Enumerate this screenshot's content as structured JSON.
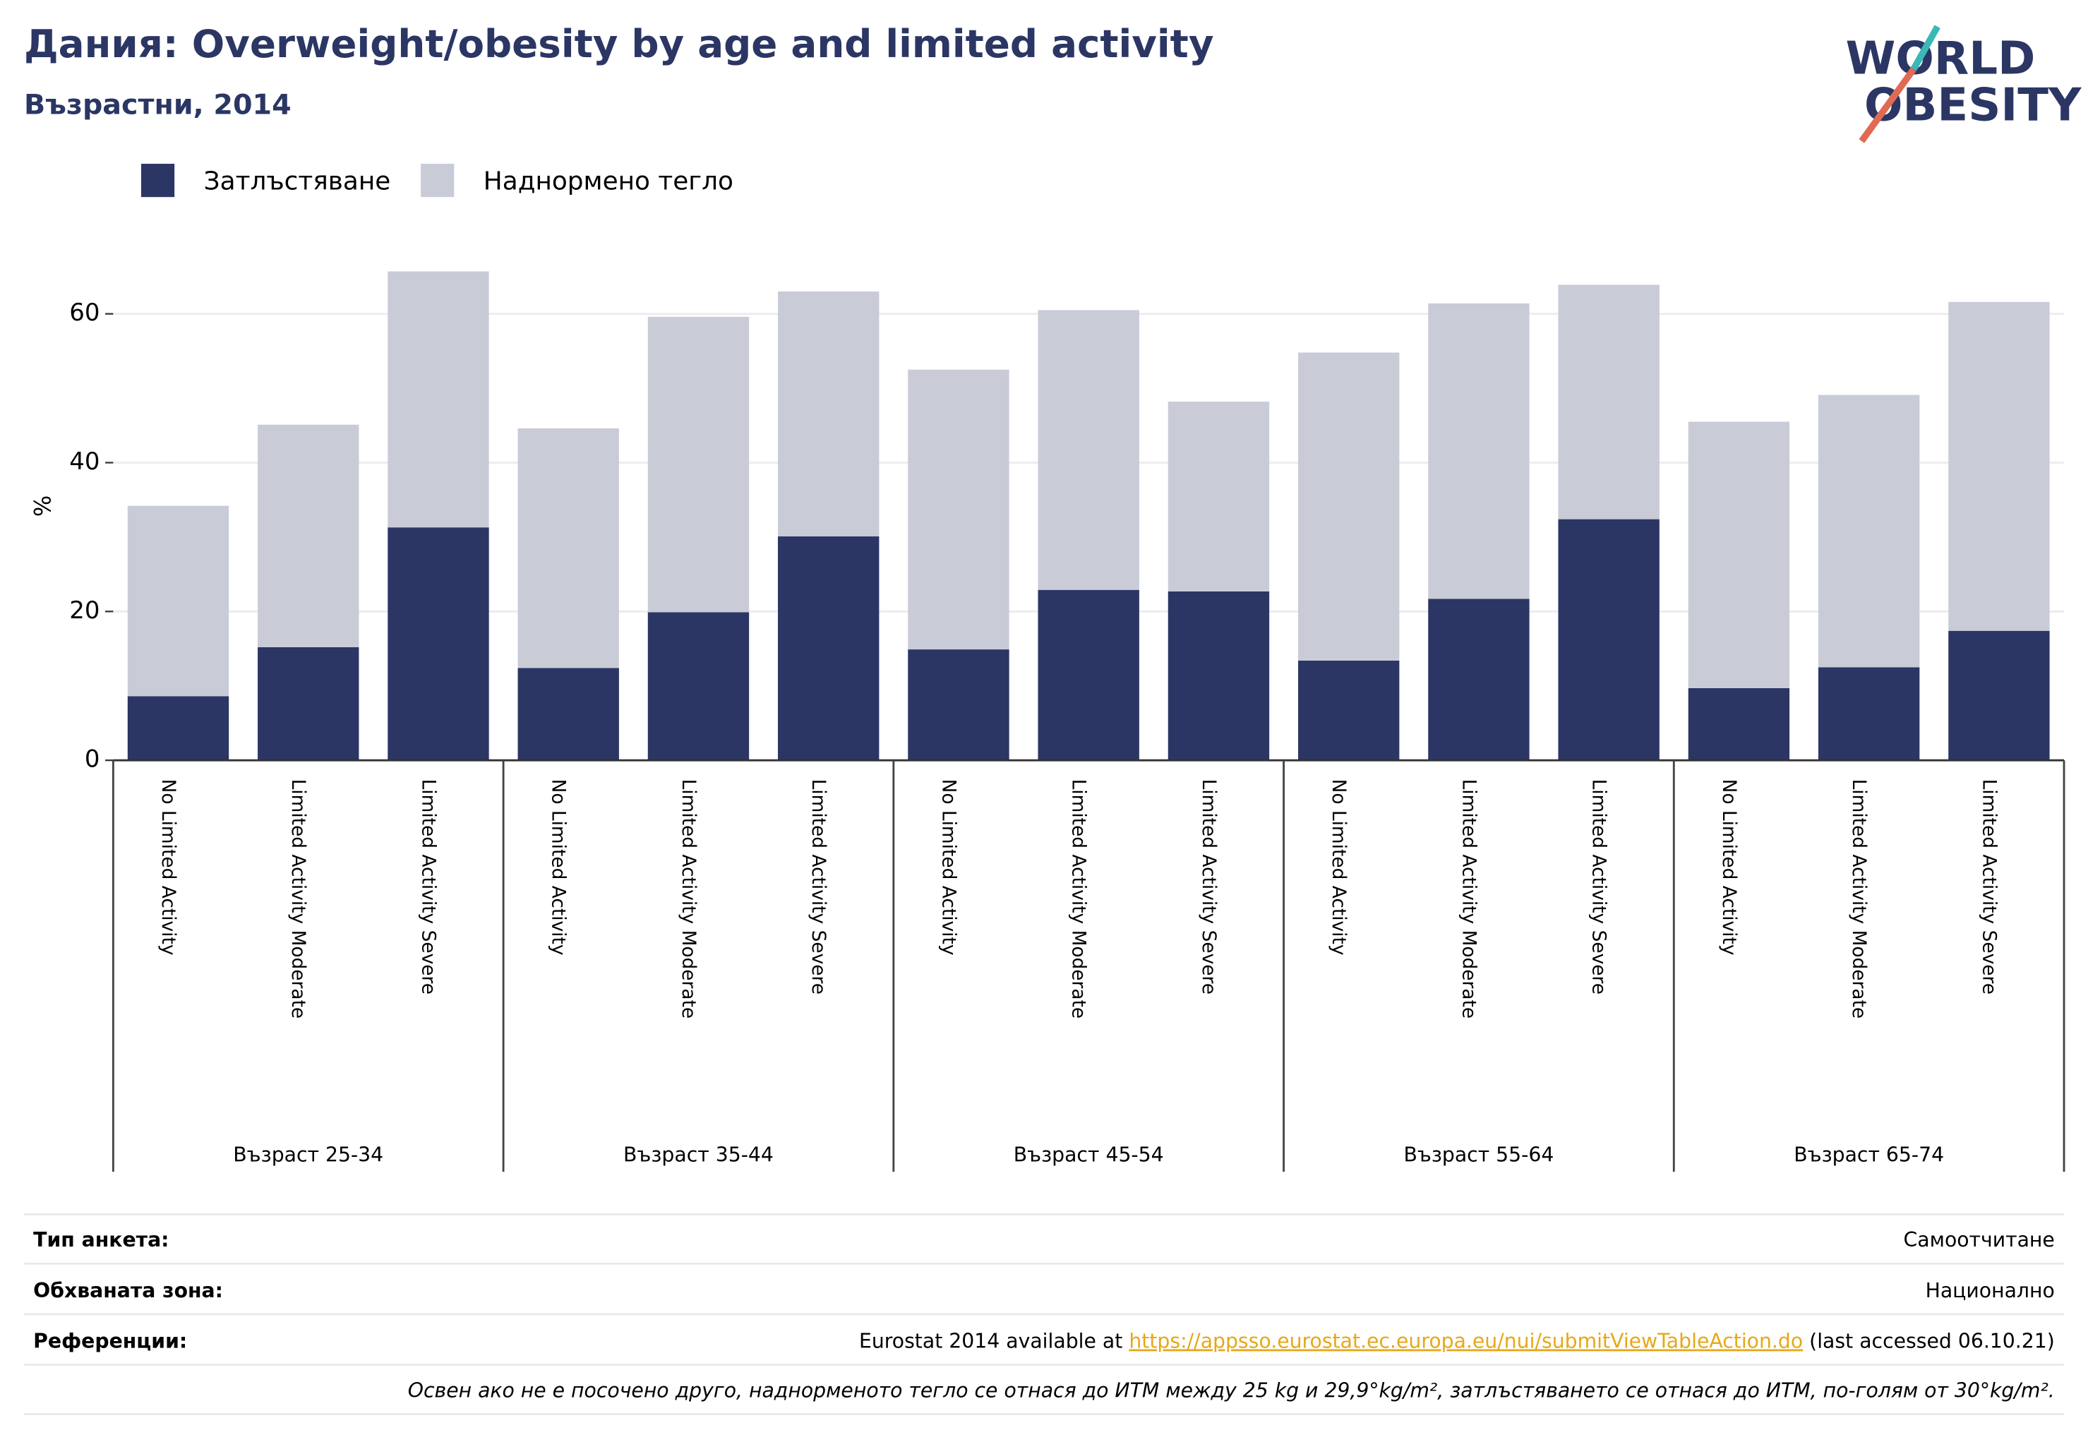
{
  "chart_data": {
    "type": "stacked_bar",
    "title": "Дания: Overweight/obesity by age and limited activity",
    "subtitle": "Възрастни, 2014",
    "ylabel": "%",
    "categories": [
      "No Limited Activity",
      "Limited Activity Moderate",
      "Limited Activity Severe",
      "No Limited Activity",
      "Limited Activity Moderate",
      "Limited Activity Severe",
      "No Limited Activity",
      "Limited Activity Moderate",
      "Limited Activity Severe",
      "No Limited Activity",
      "Limited Activity Moderate",
      "Limited Activity Severe",
      "No Limited Activity",
      "Limited Activity Moderate",
      "Limited Activity Severe"
    ],
    "groups": [
      "Възраст 25-34",
      "Възраст 35-44",
      "Възраст 45-54",
      "Възраст 55-64",
      "Възраст 65-74"
    ],
    "series": [
      {
        "name": "Затлъстяване",
        "color": "#2b3664",
        "values": [
          8.6,
          15.2,
          31.3,
          12.4,
          19.9,
          30.1,
          14.9,
          22.9,
          22.7,
          13.4,
          21.7,
          32.4,
          9.7,
          12.5,
          17.4
        ]
      },
      {
        "name": "Наднормено тегло",
        "color": "#c9cbd7",
        "values": [
          25.6,
          29.9,
          34.4,
          32.2,
          39.7,
          32.9,
          37.6,
          37.6,
          25.5,
          41.4,
          39.7,
          31.5,
          35.8,
          36.6,
          44.2
        ]
      }
    ],
    "ylim": [
      0,
      68
    ],
    "yticks": [
      0,
      20,
      40,
      60
    ],
    "grid": true,
    "legend": "top-left"
  },
  "logo": {
    "line1": "WORLD",
    "line2": "OBESITY"
  },
  "footer": {
    "rows": [
      {
        "label": "Тип анкета:",
        "value": "Самоотчитане"
      },
      {
        "label": "Обхваната зона:",
        "value": "Национално"
      }
    ],
    "reference": {
      "label": "Референции:",
      "before": "Eurostat 2014 available at ",
      "link": "https://appsso.eurostat.ec.europa.eu/nui/submitViewTableAction.do",
      "after": " (last accessed 06.10.21)"
    },
    "note": "Освен ако не е посочено друго, наднорменото тегло се отнася до ИТМ между 25 kg и 29,9°kg/m², затлъстяването се отнася до ИТМ, по-голям от 30°kg/m²."
  }
}
